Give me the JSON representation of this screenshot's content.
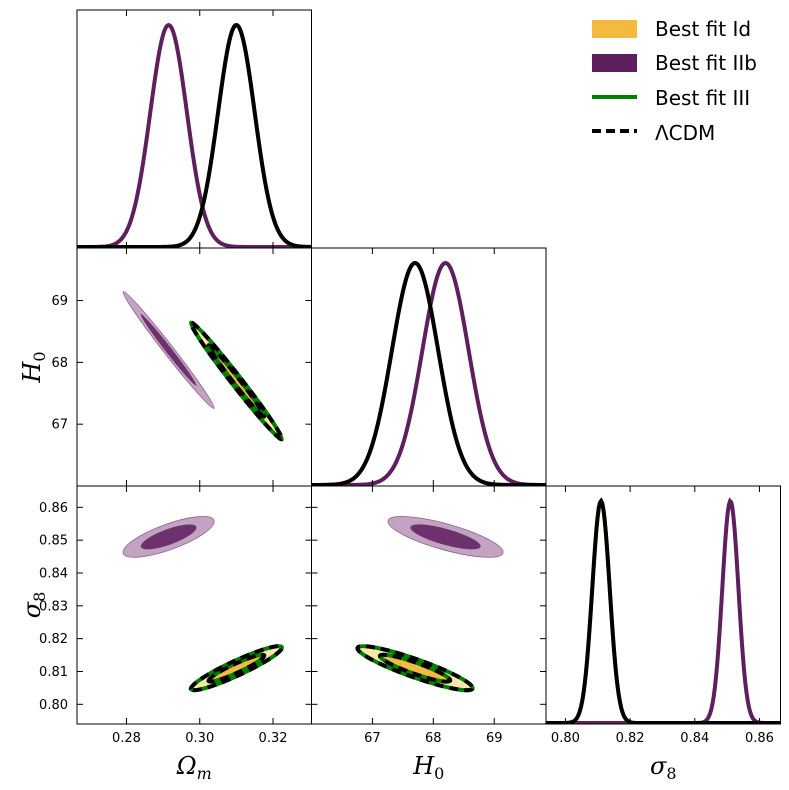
{
  "chart_data": {
    "type": "corner",
    "parameters": [
      {
        "id": "om",
        "label": "Ωm",
        "main": "Ω",
        "sub": "m",
        "range": [
          0.2665,
          0.3305
        ],
        "ticks": [
          0.28,
          0.3,
          0.32
        ],
        "tick_labels": [
          "0.28",
          "0.30",
          "0.32"
        ]
      },
      {
        "id": "h0",
        "label": "H0",
        "main": "H",
        "sub": "0",
        "range": [
          66.0,
          69.85
        ],
        "ticks": [
          67,
          68,
          69
        ],
        "tick_labels": [
          "67",
          "68",
          "69"
        ]
      },
      {
        "id": "s8",
        "label": "σ8",
        "main": "σ",
        "sub": "8",
        "range": [
          0.794,
          0.8665
        ],
        "ticks": [
          0.8,
          0.81,
          0.82,
          0.83,
          0.84,
          0.85,
          0.86
        ],
        "tick_labels": [
          "0.80",
          "0.81",
          "0.82",
          "0.83",
          "0.84",
          "0.85",
          "0.86"
        ],
        "diag_ticks": [
          0.8,
          0.82,
          0.84,
          0.86
        ],
        "diag_tick_labels": [
          "0.80",
          "0.82",
          "0.84",
          "0.86"
        ]
      }
    ],
    "series": [
      {
        "name": "Best fit Id",
        "legend_style": "patch",
        "color": "#f2bb40",
        "light": "#f8e7a8",
        "om": [
          0.31,
          0.005
        ],
        "h0": [
          67.7,
          0.38
        ],
        "s8": [
          0.811,
          0.0027
        ],
        "contours": {
          "om_h0": {
            "rho": -0.99
          },
          "om_s8": {
            "rho": 0.93
          },
          "h0_s8": {
            "rho": -0.9
          }
        }
      },
      {
        "name": "Best fit IIb",
        "legend_style": "patch",
        "color": "#5e1f5e",
        "light": "#c2a3c2",
        "om": [
          0.2915,
          0.005
        ],
        "h0": [
          68.2,
          0.38
        ],
        "s8": [
          0.851,
          0.0025
        ],
        "contours": {
          "om_h0": {
            "rho": -0.99
          },
          "om_s8": {
            "rho": 0.75
          },
          "h0_s8": {
            "rho": -0.75
          }
        }
      },
      {
        "name": "Best fit III",
        "legend_style": "line",
        "color": "#008000",
        "om": [
          0.31,
          0.005
        ],
        "h0": [
          67.7,
          0.38
        ],
        "s8": [
          0.811,
          0.0027
        ]
      },
      {
        "name": "ΛCDM",
        "legend_style": "dashed",
        "color": "#000000",
        "om": [
          0.31,
          0.005
        ],
        "h0": [
          67.7,
          0.38
        ],
        "s8": [
          0.811,
          0.0027
        ]
      }
    ],
    "legend_position": "top-right",
    "grid": false,
    "x_axis_labels": [
      "Ωm",
      "H0",
      "σ8"
    ],
    "y_axis_labels": [
      "H0",
      "σ8"
    ]
  }
}
